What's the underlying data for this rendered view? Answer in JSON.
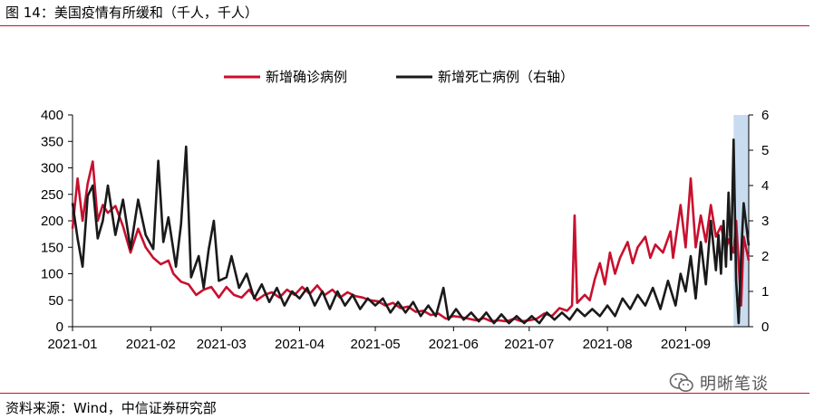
{
  "header": {
    "title": "图 14：美国疫情有所缓和（千人，千人）"
  },
  "footer": {
    "source": "资料来源：Wind，中信证券研究部"
  },
  "watermark": {
    "text": "明晰笔谈",
    "icon": "wechat-icon"
  },
  "chart_data": {
    "type": "line",
    "title": "图 14：美国疫情有所缓和（千人，千人）",
    "legend_position": "top-center",
    "grid": false,
    "x_ticks": [
      "2021-01",
      "2021-02",
      "2021-03",
      "2021-04",
      "2021-05",
      "2021-06",
      "2021-07",
      "2021-08",
      "2021-09"
    ],
    "x_range": [
      "2021-01-01",
      "2021-09-26"
    ],
    "y_left": {
      "range": [
        0,
        400
      ],
      "ticks": [
        0,
        50,
        100,
        150,
        200,
        250,
        300,
        350,
        400
      ]
    },
    "y_right": {
      "range": [
        0,
        6
      ],
      "ticks": [
        0,
        1,
        2,
        3,
        4,
        5,
        6
      ]
    },
    "highlight_band": {
      "from": "2021-09-20",
      "to": "2021-09-26",
      "color": "#c9dcef"
    },
    "series": [
      {
        "name": "新增确诊病例",
        "axis": "left",
        "color": "#c8102e",
        "points": [
          [
            "2021-01-01",
            185
          ],
          [
            "2021-01-03",
            280
          ],
          [
            "2021-01-05",
            200
          ],
          [
            "2021-01-07",
            270
          ],
          [
            "2021-01-09",
            312
          ],
          [
            "2021-01-11",
            200
          ],
          [
            "2021-01-13",
            230
          ],
          [
            "2021-01-15",
            215
          ],
          [
            "2021-01-18",
            228
          ],
          [
            "2021-01-21",
            190
          ],
          [
            "2021-01-24",
            140
          ],
          [
            "2021-01-27",
            185
          ],
          [
            "2021-01-30",
            150
          ],
          [
            "2021-02-02",
            130
          ],
          [
            "2021-02-05",
            118
          ],
          [
            "2021-02-08",
            125
          ],
          [
            "2021-02-10",
            100
          ],
          [
            "2021-02-13",
            85
          ],
          [
            "2021-02-16",
            80
          ],
          [
            "2021-02-19",
            60
          ],
          [
            "2021-02-22",
            70
          ],
          [
            "2021-02-25",
            75
          ],
          [
            "2021-02-28",
            55
          ],
          [
            "2021-03-03",
            75
          ],
          [
            "2021-03-06",
            60
          ],
          [
            "2021-03-09",
            55
          ],
          [
            "2021-03-12",
            70
          ],
          [
            "2021-03-15",
            50
          ],
          [
            "2021-03-18",
            60
          ],
          [
            "2021-03-21",
            65
          ],
          [
            "2021-03-24",
            55
          ],
          [
            "2021-03-27",
            70
          ],
          [
            "2021-03-30",
            60
          ],
          [
            "2021-04-02",
            75
          ],
          [
            "2021-04-05",
            62
          ],
          [
            "2021-04-08",
            78
          ],
          [
            "2021-04-11",
            60
          ],
          [
            "2021-04-14",
            70
          ],
          [
            "2021-04-17",
            55
          ],
          [
            "2021-04-20",
            65
          ],
          [
            "2021-04-23",
            58
          ],
          [
            "2021-04-26",
            55
          ],
          [
            "2021-04-29",
            50
          ],
          [
            "2021-05-02",
            48
          ],
          [
            "2021-05-05",
            40
          ],
          [
            "2021-05-08",
            45
          ],
          [
            "2021-05-11",
            35
          ],
          [
            "2021-05-14",
            38
          ],
          [
            "2021-05-17",
            28
          ],
          [
            "2021-05-20",
            30
          ],
          [
            "2021-05-23",
            22
          ],
          [
            "2021-05-26",
            25
          ],
          [
            "2021-05-29",
            15
          ],
          [
            "2021-06-01",
            20
          ],
          [
            "2021-06-04",
            18
          ],
          [
            "2021-06-07",
            15
          ],
          [
            "2021-06-10",
            12
          ],
          [
            "2021-06-13",
            16
          ],
          [
            "2021-06-16",
            10
          ],
          [
            "2021-06-19",
            12
          ],
          [
            "2021-06-22",
            10
          ],
          [
            "2021-06-25",
            15
          ],
          [
            "2021-06-28",
            10
          ],
          [
            "2021-07-01",
            12
          ],
          [
            "2021-07-04",
            15
          ],
          [
            "2021-07-07",
            25
          ],
          [
            "2021-07-10",
            20
          ],
          [
            "2021-07-13",
            35
          ],
          [
            "2021-07-16",
            30
          ],
          [
            "2021-07-18",
            40
          ],
          [
            "2021-07-19",
            210
          ],
          [
            "2021-07-20",
            45
          ],
          [
            "2021-07-23",
            60
          ],
          [
            "2021-07-25",
            50
          ],
          [
            "2021-07-27",
            90
          ],
          [
            "2021-07-29",
            120
          ],
          [
            "2021-07-31",
            80
          ],
          [
            "2021-08-02",
            140
          ],
          [
            "2021-08-04",
            100
          ],
          [
            "2021-08-06",
            130
          ],
          [
            "2021-08-09",
            160
          ],
          [
            "2021-08-11",
            120
          ],
          [
            "2021-08-13",
            150
          ],
          [
            "2021-08-16",
            170
          ],
          [
            "2021-08-18",
            130
          ],
          [
            "2021-08-20",
            155
          ],
          [
            "2021-08-23",
            140
          ],
          [
            "2021-08-26",
            180
          ],
          [
            "2021-08-27",
            130
          ],
          [
            "2021-08-30",
            230
          ],
          [
            "2021-09-01",
            150
          ],
          [
            "2021-09-03",
            280
          ],
          [
            "2021-09-05",
            150
          ],
          [
            "2021-09-07",
            210
          ],
          [
            "2021-09-09",
            160
          ],
          [
            "2021-09-11",
            230
          ],
          [
            "2021-09-13",
            170
          ],
          [
            "2021-09-15",
            190
          ],
          [
            "2021-09-17",
            145
          ],
          [
            "2021-09-18",
            165
          ],
          [
            "2021-09-20",
            140
          ],
          [
            "2021-09-21",
            200
          ],
          [
            "2021-09-23",
            40
          ],
          [
            "2021-09-24",
            170
          ],
          [
            "2021-09-26",
            125
          ]
        ]
      },
      {
        "name": "新增死亡病例（右轴）",
        "axis": "right",
        "color": "#1a1a1a",
        "points": [
          [
            "2021-01-01",
            3.5
          ],
          [
            "2021-01-03",
            2.5
          ],
          [
            "2021-01-05",
            1.7
          ],
          [
            "2021-01-07",
            3.7
          ],
          [
            "2021-01-09",
            4.0
          ],
          [
            "2021-01-11",
            2.5
          ],
          [
            "2021-01-13",
            3.0
          ],
          [
            "2021-01-15",
            4.0
          ],
          [
            "2021-01-18",
            2.6
          ],
          [
            "2021-01-21",
            3.6
          ],
          [
            "2021-01-24",
            2.2
          ],
          [
            "2021-01-27",
            3.6
          ],
          [
            "2021-01-30",
            2.6
          ],
          [
            "2021-02-02",
            2.2
          ],
          [
            "2021-02-04",
            4.7
          ],
          [
            "2021-02-06",
            2.4
          ],
          [
            "2021-02-08",
            3.1
          ],
          [
            "2021-02-11",
            1.7
          ],
          [
            "2021-02-13",
            2.9
          ],
          [
            "2021-02-15",
            5.1
          ],
          [
            "2021-02-17",
            1.4
          ],
          [
            "2021-02-20",
            2.0
          ],
          [
            "2021-02-22",
            1.1
          ],
          [
            "2021-02-24",
            2.2
          ],
          [
            "2021-02-26",
            3.0
          ],
          [
            "2021-02-28",
            1.3
          ],
          [
            "2021-03-03",
            1.4
          ],
          [
            "2021-03-05",
            2.0
          ],
          [
            "2021-03-08",
            1.1
          ],
          [
            "2021-03-11",
            1.5
          ],
          [
            "2021-03-14",
            0.8
          ],
          [
            "2021-03-17",
            1.2
          ],
          [
            "2021-03-20",
            0.7
          ],
          [
            "2021-03-23",
            1.1
          ],
          [
            "2021-03-26",
            0.6
          ],
          [
            "2021-03-29",
            1.0
          ],
          [
            "2021-04-01",
            0.8
          ],
          [
            "2021-04-04",
            1.1
          ],
          [
            "2021-04-07",
            0.6
          ],
          [
            "2021-04-10",
            1.0
          ],
          [
            "2021-04-13",
            0.5
          ],
          [
            "2021-04-16",
            1.0
          ],
          [
            "2021-04-19",
            0.6
          ],
          [
            "2021-04-22",
            0.9
          ],
          [
            "2021-04-25",
            0.5
          ],
          [
            "2021-04-28",
            0.8
          ],
          [
            "2021-05-01",
            0.6
          ],
          [
            "2021-05-04",
            0.8
          ],
          [
            "2021-05-07",
            0.4
          ],
          [
            "2021-05-10",
            0.7
          ],
          [
            "2021-05-13",
            0.4
          ],
          [
            "2021-05-16",
            0.7
          ],
          [
            "2021-05-19",
            0.3
          ],
          [
            "2021-05-22",
            0.6
          ],
          [
            "2021-05-25",
            0.3
          ],
          [
            "2021-05-28",
            1.1
          ],
          [
            "2021-05-30",
            0.2
          ],
          [
            "2021-06-02",
            0.5
          ],
          [
            "2021-06-05",
            0.2
          ],
          [
            "2021-06-08",
            0.4
          ],
          [
            "2021-06-11",
            0.15
          ],
          [
            "2021-06-14",
            0.4
          ],
          [
            "2021-06-17",
            0.1
          ],
          [
            "2021-06-20",
            0.35
          ],
          [
            "2021-06-23",
            0.1
          ],
          [
            "2021-06-26",
            0.3
          ],
          [
            "2021-06-29",
            0.1
          ],
          [
            "2021-07-02",
            0.3
          ],
          [
            "2021-07-05",
            0.1
          ],
          [
            "2021-07-08",
            0.4
          ],
          [
            "2021-07-11",
            0.2
          ],
          [
            "2021-07-14",
            0.4
          ],
          [
            "2021-07-17",
            0.2
          ],
          [
            "2021-07-20",
            0.5
          ],
          [
            "2021-07-23",
            0.3
          ],
          [
            "2021-07-26",
            0.5
          ],
          [
            "2021-07-29",
            0.3
          ],
          [
            "2021-08-01",
            0.6
          ],
          [
            "2021-08-04",
            0.3
          ],
          [
            "2021-08-07",
            0.8
          ],
          [
            "2021-08-10",
            0.5
          ],
          [
            "2021-08-13",
            0.9
          ],
          [
            "2021-08-16",
            0.6
          ],
          [
            "2021-08-19",
            1.1
          ],
          [
            "2021-08-22",
            0.5
          ],
          [
            "2021-08-25",
            1.3
          ],
          [
            "2021-08-28",
            0.6
          ],
          [
            "2021-08-30",
            1.5
          ],
          [
            "2021-09-01",
            1.0
          ],
          [
            "2021-09-03",
            2.0
          ],
          [
            "2021-09-05",
            0.8
          ],
          [
            "2021-09-07",
            2.4
          ],
          [
            "2021-09-09",
            1.2
          ],
          [
            "2021-09-11",
            3.0
          ],
          [
            "2021-09-13",
            1.6
          ],
          [
            "2021-09-14",
            2.6
          ],
          [
            "2021-09-15",
            1.5
          ],
          [
            "2021-09-16",
            3.0
          ],
          [
            "2021-09-17",
            1.7
          ],
          [
            "2021-09-18",
            3.8
          ],
          [
            "2021-09-19",
            1.9
          ],
          [
            "2021-09-20",
            5.3
          ],
          [
            "2021-09-21",
            1.3
          ],
          [
            "2021-09-22",
            0.1
          ],
          [
            "2021-09-23",
            2.0
          ],
          [
            "2021-09-24",
            3.5
          ],
          [
            "2021-09-26",
            2.3
          ]
        ]
      }
    ]
  }
}
